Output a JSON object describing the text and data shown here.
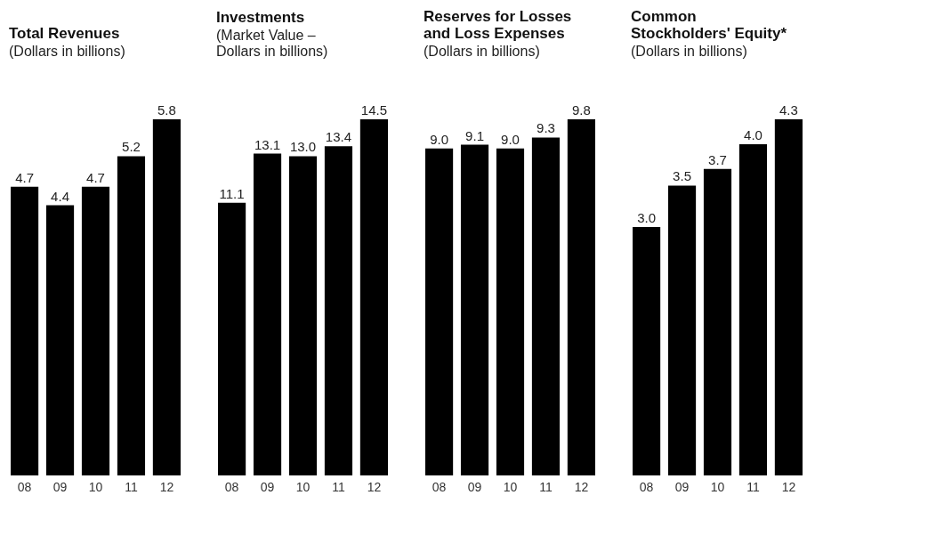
{
  "chart_data": [
    {
      "type": "bar",
      "title": "Total Revenues",
      "subtitle": "(Dollars in billions)",
      "categories": [
        "08",
        "09",
        "10",
        "11",
        "12"
      ],
      "values": [
        4.7,
        4.4,
        4.7,
        5.2,
        5.8
      ],
      "value_labels": [
        "4.7",
        "4.4",
        "4.7",
        "5.2",
        "5.8"
      ],
      "color": "#000000",
      "tick_labels": "x"
    },
    {
      "type": "bar",
      "title": "Investments",
      "subtitle": "(Market Value –\nDollars in billions)",
      "categories": [
        "08",
        "09",
        "10",
        "11",
        "12"
      ],
      "values": [
        11.1,
        13.1,
        13.0,
        13.4,
        14.5
      ],
      "value_labels": [
        "11.1",
        "13.1",
        "13.0",
        "13.4",
        "14.5"
      ],
      "color": "#000000",
      "tick_labels": "x"
    },
    {
      "type": "bar",
      "title": "Reserves for Losses\nand Loss Expenses",
      "subtitle": "(Dollars in billions)",
      "categories": [
        "08",
        "09",
        "10",
        "11",
        "12"
      ],
      "values": [
        9.0,
        9.1,
        9.0,
        9.3,
        9.8
      ],
      "value_labels": [
        "9.0",
        "9.1",
        "9.0",
        "9.3",
        "9.8"
      ],
      "color": "#000000",
      "tick_labels": "x"
    },
    {
      "type": "bar",
      "title": "Common\nStockholders' Equity*",
      "subtitle": "(Dollars in billions)",
      "categories": [
        "08",
        "09",
        "10",
        "11",
        "12"
      ],
      "values": [
        3.0,
        3.5,
        3.7,
        4.0,
        4.3
      ],
      "value_labels": [
        "3.0",
        "3.5",
        "3.7",
        "4.0",
        "4.3"
      ],
      "color": "#000000",
      "tick_labels": "x"
    }
  ]
}
